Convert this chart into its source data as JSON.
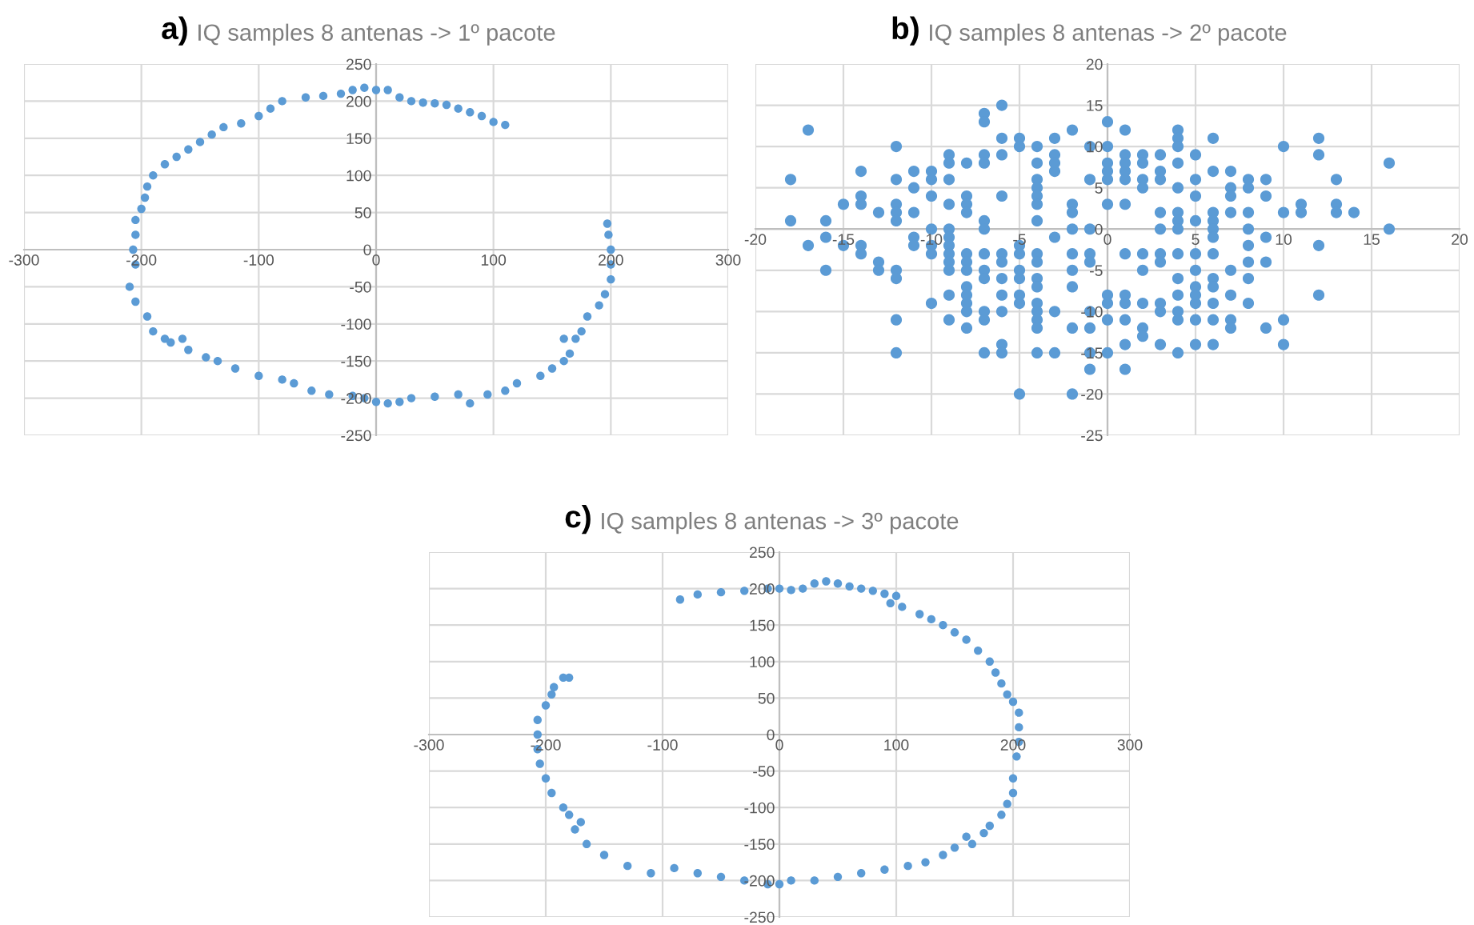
{
  "chart_data": [
    {
      "type": "scatter",
      "annotations": [
        "a)"
      ],
      "title": "IQ samples 8 antenas -> 1º pacote",
      "xlim": [
        -300,
        300
      ],
      "ylim": [
        -250,
        250
      ],
      "xticks": [
        -300,
        -200,
        -100,
        0,
        100,
        200,
        300
      ],
      "yticks": [
        -250,
        -200,
        -150,
        -100,
        -50,
        0,
        50,
        100,
        150,
        200,
        250
      ],
      "grid": true,
      "marker": "circle",
      "series": [
        {
          "color": "#5b9bd5",
          "x": [
            110,
            100,
            90,
            80,
            70,
            60,
            50,
            40,
            30,
            20,
            10,
            0,
            -10,
            -20,
            -30,
            -45,
            -60,
            -80,
            -90,
            -100,
            -115,
            -130,
            -140,
            -150,
            -160,
            -170,
            -180,
            -190,
            -195,
            -197,
            -200,
            -205,
            -205,
            -207,
            -205,
            -210,
            -205,
            -195,
            -190,
            -180,
            -175,
            -165,
            -160,
            -145,
            -135,
            -120,
            -100,
            -80,
            -70,
            -55,
            -40,
            -20,
            -10,
            0,
            10,
            20,
            30,
            50,
            70,
            80,
            95,
            110,
            120,
            140,
            150,
            160,
            165,
            160,
            170,
            175,
            180,
            190,
            195,
            200,
            200,
            200,
            198,
            197
          ],
          "values": [
            168,
            172,
            180,
            185,
            190,
            195,
            197,
            198,
            200,
            205,
            215,
            215,
            218,
            215,
            210,
            207,
            205,
            200,
            190,
            180,
            170,
            165,
            155,
            145,
            135,
            125,
            115,
            100,
            85,
            70,
            55,
            40,
            20,
            0,
            -20,
            -50,
            -70,
            -90,
            -110,
            -120,
            -125,
            -120,
            -135,
            -145,
            -150,
            -160,
            -170,
            -175,
            -180,
            -190,
            -195,
            -197,
            -200,
            -205,
            -207,
            -205,
            -200,
            -198,
            -195,
            -207,
            -195,
            -190,
            -180,
            -170,
            -160,
            -150,
            -140,
            -120,
            -120,
            -110,
            -90,
            -75,
            -60,
            -40,
            -20,
            0,
            20,
            35
          ]
        }
      ]
    },
    {
      "type": "scatter",
      "annotations": [
        "b)"
      ],
      "title": "IQ samples 8 antenas -> 2º pacote",
      "xlim": [
        -20,
        20
      ],
      "ylim": [
        -25,
        20
      ],
      "xticks": [
        -20,
        -15,
        -10,
        -5,
        0,
        5,
        10,
        15,
        20
      ],
      "yticks": [
        -25,
        -20,
        -15,
        -10,
        -5,
        0,
        5,
        10,
        15,
        20
      ],
      "grid": true,
      "marker": "circle",
      "series": [
        {
          "color": "#5b9bd5",
          "x": [
            -18,
            -18,
            -17,
            -17,
            -16,
            -16,
            -16,
            -15,
            -15,
            -14,
            -14,
            -14,
            -14,
            -14,
            -13,
            -13,
            -13,
            -12,
            -12,
            -12,
            -12,
            -12,
            -12,
            -12,
            -12,
            -12,
            -11,
            -11,
            -11,
            -11,
            -11,
            -10,
            -10,
            -10,
            -10,
            -10,
            -10,
            -10,
            -9,
            -9,
            -9,
            -9,
            -9,
            -9,
            -9,
            -9,
            -9,
            -9,
            -9,
            -9,
            -8,
            -8,
            -8,
            -8,
            -8,
            -8,
            -8,
            -8,
            -8,
            -8,
            -8,
            -8,
            -7,
            -7,
            -7,
            -7,
            -7,
            -7,
            -7,
            -7,
            -7,
            -7,
            -7,
            -7,
            -6,
            -6,
            -6,
            -6,
            -6,
            -6,
            -6,
            -6,
            -6,
            -6,
            -6,
            -5,
            -5,
            -5,
            -5,
            -5,
            -5,
            -5,
            -5,
            -5,
            -4,
            -4,
            -4,
            -4,
            -4,
            -4,
            -4,
            -4,
            -4,
            -4,
            -4,
            -4,
            -4,
            -4,
            -4,
            -4,
            -3,
            -3,
            -3,
            -3,
            -3,
            -3,
            -3,
            -2,
            -2,
            -2,
            -2,
            -2,
            -2,
            -2,
            -2,
            -2,
            -1,
            -1,
            -1,
            -1,
            -1,
            -1,
            -1,
            -1,
            -1,
            0,
            0,
            0,
            0,
            0,
            0,
            0,
            0,
            0,
            0,
            1,
            1,
            1,
            1,
            1,
            1,
            1,
            1,
            1,
            1,
            1,
            1,
            2,
            2,
            2,
            2,
            2,
            2,
            2,
            2,
            2,
            3,
            3,
            3,
            3,
            3,
            3,
            3,
            3,
            3,
            3,
            4,
            4,
            4,
            4,
            4,
            4,
            4,
            4,
            4,
            4,
            4,
            4,
            4,
            4,
            5,
            5,
            5,
            5,
            5,
            5,
            5,
            5,
            5,
            5,
            5,
            6,
            6,
            6,
            6,
            6,
            6,
            6,
            6,
            6,
            6,
            6,
            6,
            7,
            7,
            7,
            7,
            7,
            7,
            7,
            7,
            8,
            8,
            8,
            8,
            8,
            8,
            8,
            8,
            9,
            9,
            9,
            9,
            9,
            10,
            10,
            10,
            10,
            11,
            11,
            12,
            12,
            12,
            12,
            13,
            13,
            13,
            14,
            16,
            16
          ],
          "values": [
            6,
            1,
            12,
            -2,
            1,
            -1,
            -5,
            3,
            -2,
            7,
            4,
            3,
            -2,
            -3,
            2,
            -4,
            -5,
            10,
            6,
            3,
            2,
            1,
            -5,
            -6,
            -11,
            -15,
            7,
            5,
            2,
            -1,
            -2,
            7,
            6,
            4,
            0,
            -2,
            -3,
            -9,
            9,
            8,
            6,
            3,
            0,
            -1,
            -2,
            -3,
            -4,
            -5,
            -8,
            -11,
            8,
            4,
            3,
            2,
            -3,
            -4,
            -5,
            -7,
            -8,
            -9,
            -10,
            -12,
            14,
            13,
            9,
            8,
            1,
            0,
            -3,
            -5,
            -6,
            -10,
            -11,
            -15,
            15,
            11,
            9,
            4,
            -3,
            -4,
            -6,
            -8,
            -10,
            -14,
            -15,
            11,
            10,
            -2,
            -3,
            -5,
            -6,
            -8,
            -9,
            -20,
            10,
            8,
            6,
            5,
            4,
            3,
            1,
            -3,
            -4,
            -6,
            -7,
            -9,
            -10,
            -11,
            -12,
            -15,
            11,
            9,
            8,
            7,
            -1,
            -10,
            -15,
            12,
            3,
            2,
            0,
            -3,
            -5,
            -7,
            -12,
            -20,
            10,
            6,
            0,
            -3,
            -4,
            -10,
            -12,
            -15,
            -17,
            13,
            10,
            8,
            7,
            6,
            3,
            -8,
            -9,
            -11,
            -15,
            12,
            9,
            8,
            7,
            6,
            3,
            -3,
            -8,
            -9,
            -11,
            -14,
            -17,
            9,
            8,
            6,
            5,
            -3,
            -5,
            -9,
            -12,
            -13,
            9,
            7,
            6,
            2,
            0,
            -3,
            -4,
            -9,
            -10,
            -14,
            12,
            11,
            10,
            8,
            5,
            2,
            1,
            0,
            -3,
            -6,
            -8,
            -10,
            -11,
            -15,
            9,
            6,
            4,
            1,
            -3,
            -5,
            -7,
            -8,
            -9,
            -11,
            -14,
            11,
            7,
            2,
            1,
            0,
            -1,
            -3,
            -6,
            -7,
            -9,
            -11,
            -14,
            7,
            5,
            4,
            2,
            -5,
            -8,
            -11,
            -12,
            6,
            5,
            2,
            0,
            -2,
            -4,
            -6,
            -9,
            6,
            4,
            -1,
            -4,
            -12,
            10,
            2,
            -11,
            -14,
            3,
            2,
            11,
            9,
            -2,
            -8,
            6,
            3,
            2,
            2,
            8,
            0
          ]
        }
      ]
    },
    {
      "type": "scatter",
      "annotations": [
        "c)"
      ],
      "title": "IQ samples 8 antenas -> 3º pacote",
      "xlim": [
        -300,
        300
      ],
      "ylim": [
        -250,
        250
      ],
      "xticks": [
        -300,
        -200,
        -100,
        0,
        100,
        200,
        300
      ],
      "yticks": [
        -250,
        -200,
        -150,
        -100,
        -50,
        0,
        50,
        100,
        150,
        200,
        250
      ],
      "grid": true,
      "marker": "circle",
      "series": [
        {
          "color": "#5b9bd5",
          "x": [
            -85,
            -70,
            -50,
            -30,
            -10,
            0,
            10,
            20,
            30,
            40,
            50,
            60,
            70,
            80,
            90,
            95,
            100,
            105,
            120,
            130,
            140,
            150,
            160,
            170,
            180,
            185,
            190,
            195,
            200,
            205,
            205,
            205,
            203,
            200,
            200,
            195,
            190,
            180,
            175,
            165,
            160,
            150,
            140,
            125,
            110,
            90,
            70,
            50,
            30,
            10,
            0,
            -10,
            -30,
            -50,
            -70,
            -90,
            -110,
            -130,
            -150,
            -165,
            -175,
            -170,
            -180,
            -185,
            -195,
            -200,
            -205,
            -207,
            -207,
            -207,
            -200,
            -195,
            -193,
            -185,
            -180
          ],
          "values": [
            185,
            192,
            195,
            197,
            200,
            200,
            198,
            200,
            207,
            210,
            207,
            203,
            200,
            197,
            193,
            180,
            190,
            175,
            165,
            158,
            150,
            140,
            130,
            115,
            100,
            85,
            70,
            55,
            45,
            30,
            10,
            -10,
            -30,
            -60,
            -80,
            -95,
            -110,
            -125,
            -135,
            -150,
            -140,
            -155,
            -165,
            -175,
            -180,
            -185,
            -190,
            -195,
            -200,
            -200,
            -205,
            -205,
            -200,
            -195,
            -190,
            -183,
            -190,
            -180,
            -165,
            -150,
            -130,
            -120,
            -110,
            -100,
            -80,
            -60,
            -40,
            -20,
            0,
            20,
            40,
            55,
            65,
            78,
            78
          ]
        }
      ]
    }
  ]
}
